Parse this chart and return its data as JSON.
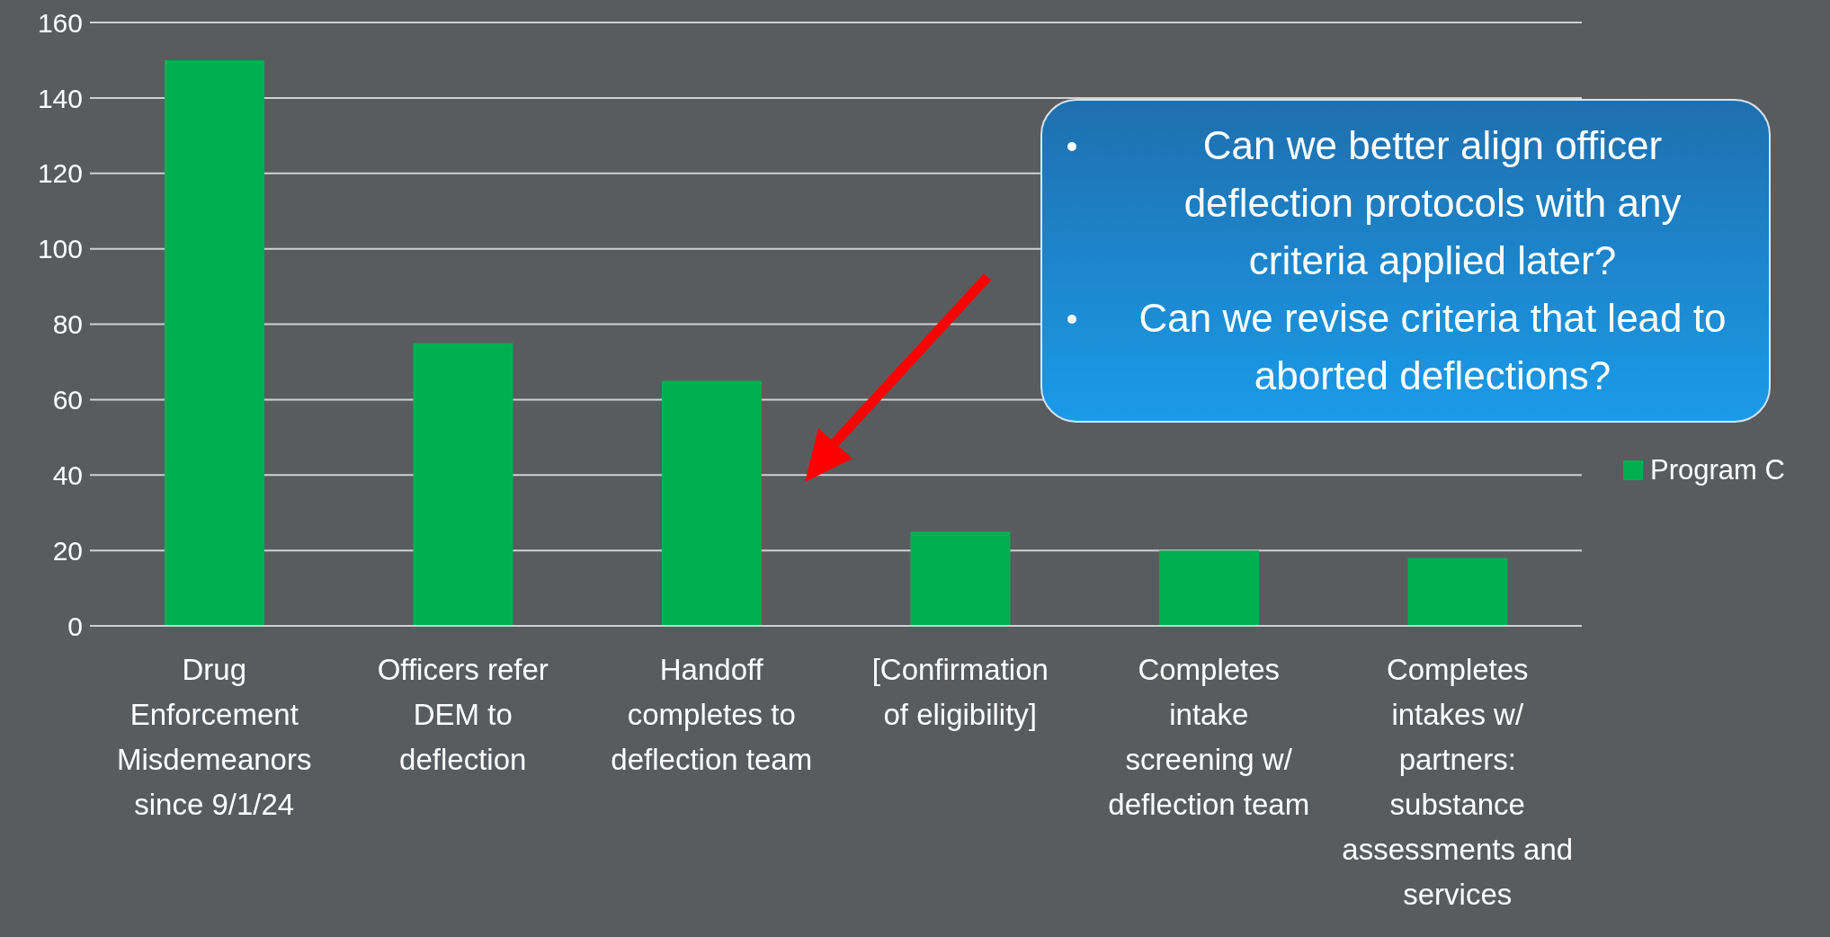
{
  "chart_data": {
    "type": "bar",
    "categories": [
      "Drug Enforcement Misdemeanors since 9/1/24",
      "Officers refer DEM to deflection",
      "Handoff completes to deflection team",
      "[Confirmation of eligibility]",
      "Completes intake screening w/ deflection team",
      "Completes intakes w/ partners: substance assessments and services"
    ],
    "series": [
      {
        "name": "Program C",
        "color": "#00b050",
        "values": [
          150,
          75,
          65,
          25,
          20,
          18
        ]
      }
    ],
    "ylim": [
      0,
      160
    ],
    "yticks": [
      0,
      20,
      40,
      60,
      80,
      100,
      120,
      140,
      160
    ],
    "grid": "y",
    "legend": "right",
    "annotations": [
      "Can we better align officer deflection protocols with any criteria applied later?",
      "Can we revise criteria that lead to aborted deflections?"
    ]
  }
}
